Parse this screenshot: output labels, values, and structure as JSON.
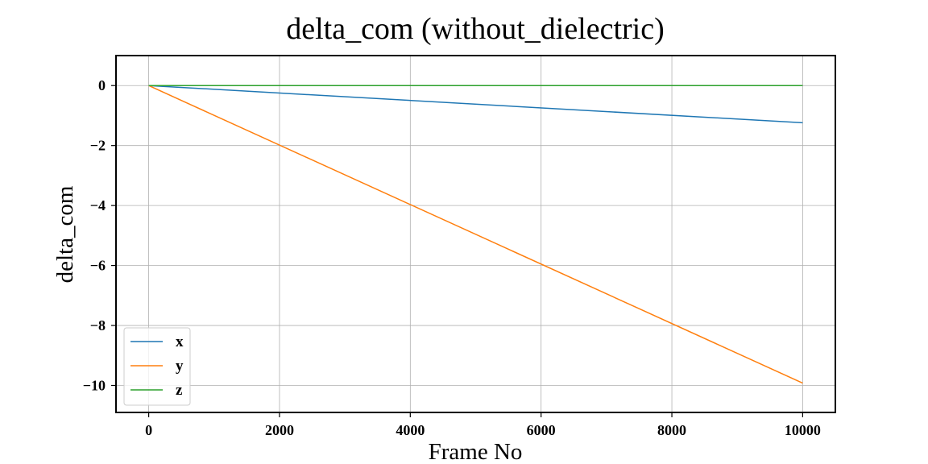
{
  "chart_data": {
    "type": "line",
    "title": "delta_com (without_dielectric)",
    "xlabel": "Frame No",
    "ylabel": "delta_com",
    "xlim": [
      -500,
      10500
    ],
    "ylim": [
      -10.9,
      1.0
    ],
    "x_ticks": [
      0,
      2000,
      4000,
      6000,
      8000,
      10000
    ],
    "x_tick_labels": [
      "0",
      "2000",
      "4000",
      "6000",
      "8000",
      "10000"
    ],
    "y_ticks": [
      0,
      -2,
      -4,
      -6,
      -8,
      -10
    ],
    "y_tick_labels": [
      "0",
      "−2",
      "−4",
      "−6",
      "−8",
      "−10"
    ],
    "grid": true,
    "legend_position": "lower-left",
    "x": [
      0,
      10000
    ],
    "series": [
      {
        "name": "x",
        "color": "#1f77b4",
        "values": [
          0,
          -1.24
        ]
      },
      {
        "name": "y",
        "color": "#ff7f0e",
        "values": [
          0,
          -9.92
        ]
      },
      {
        "name": "z",
        "color": "#2ca02c",
        "values": [
          0,
          0
        ]
      }
    ]
  }
}
